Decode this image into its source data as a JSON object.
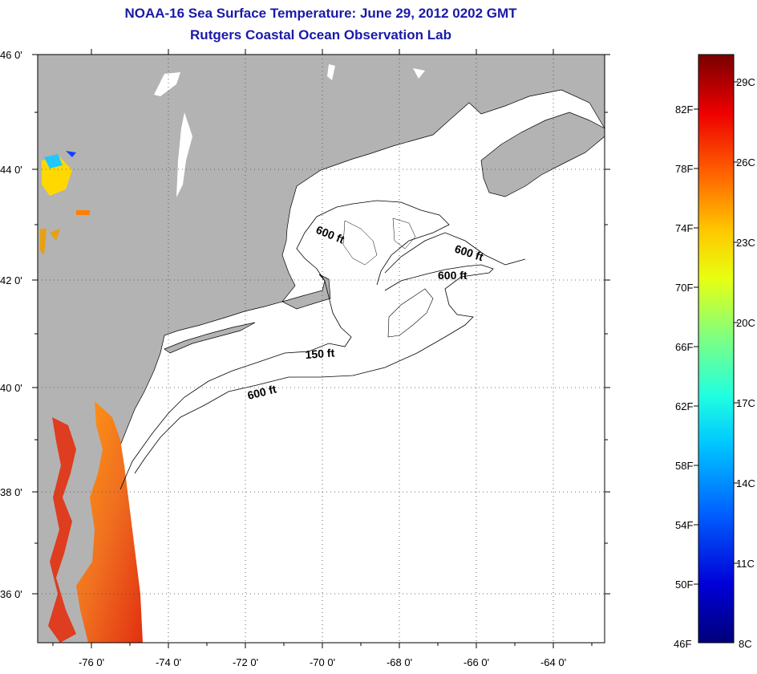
{
  "title": "NOAA-16 Sea Surface Temperature:  June 29, 2012 0202 GMT",
  "subtitle": "Rutgers Coastal Ocean Observation Lab",
  "latitude_labels": [
    "46 0'",
    "44 0'",
    "42 0'",
    "40 0'",
    "38 0'",
    "36 0'"
  ],
  "longitude_labels": [
    "-76 0'",
    "-74 0'",
    "-72 0'",
    "-70 0'",
    "-68 0'",
    "-66 0'",
    "-64 0'"
  ],
  "contour_labels": [
    {
      "text": "600 ft"
    },
    {
      "text": "600 ft"
    },
    {
      "text": "600 ft"
    },
    {
      "text": "150 ft"
    },
    {
      "text": "600 ft"
    }
  ],
  "colorbar": {
    "fahrenheit_labels": [
      "82F",
      "78F",
      "74F",
      "70F",
      "66F",
      "62F",
      "58F",
      "54F",
      "50F",
      "46F"
    ],
    "celsius_labels": [
      "29C",
      "26C",
      "23C",
      "20C",
      "17C",
      "14C",
      "11C",
      "8C"
    ]
  },
  "colors": {
    "title": "#1a1aa8",
    "land": "#b3b3b3",
    "water": "#ffffff"
  }
}
